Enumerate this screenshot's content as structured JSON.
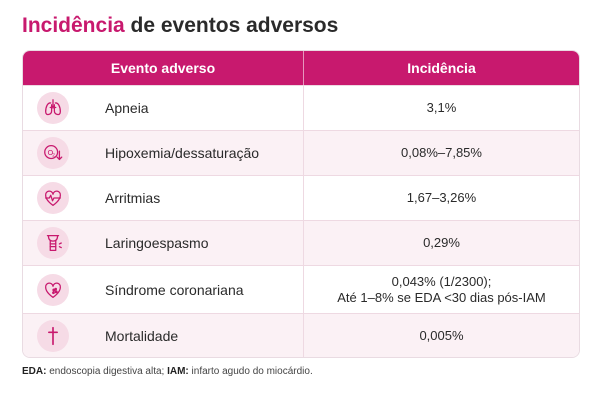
{
  "title": {
    "accent": "Incidência",
    "rest": " de eventos adversos"
  },
  "table": {
    "headers": [
      "Evento adverso",
      "Incidência"
    ],
    "rows": [
      {
        "icon": "lungs-icon",
        "label": "Apneia",
        "value": [
          "3,1%"
        ]
      },
      {
        "icon": "oxygen-down-icon",
        "label": "Hipoxemia/dessaturação",
        "value": [
          "0,08%–7,85%"
        ]
      },
      {
        "icon": "heart-rhythm-icon",
        "label": "Arritmias",
        "value": [
          "1,67–3,26%"
        ]
      },
      {
        "icon": "larynx-icon",
        "label": "Laringoespasmo",
        "value": [
          "0,29%"
        ]
      },
      {
        "icon": "heart-damage-icon",
        "label": "Síndrome coronariana",
        "value": [
          "0,043% (1/2300);",
          "Até 1–8% se EDA <30 dias pós-IAM"
        ]
      },
      {
        "icon": "cross-icon",
        "label": "Mortalidade",
        "value": [
          "0,005%"
        ]
      }
    ]
  },
  "footnote": {
    "abbr1": "EDA:",
    "def1": " endoscopia digestiva alta; ",
    "abbr2": "IAM:",
    "def2": " infarto agudo do miocárdio."
  },
  "colors": {
    "accent": "#c8196e",
    "icon_bg": "#f6dbe6",
    "row_alt": "#fbf1f5"
  }
}
